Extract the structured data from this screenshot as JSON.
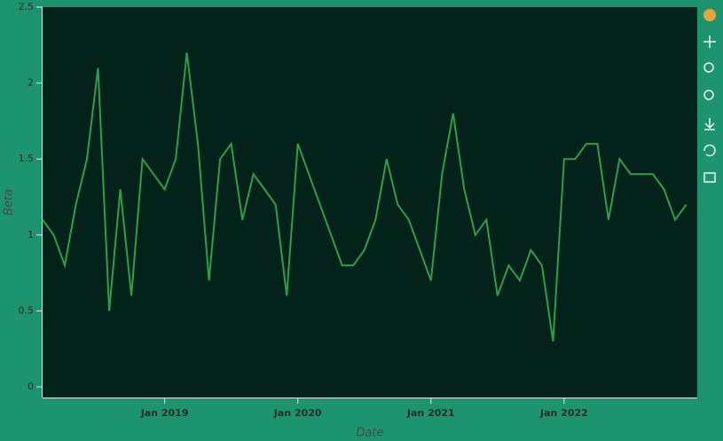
{
  "chart_data": {
    "type": "line",
    "x_label": "Date",
    "y_label": "Beta",
    "x": [
      "2018-02",
      "2018-03",
      "2018-04",
      "2018-05",
      "2018-06",
      "2018-07",
      "2018-08",
      "2018-09",
      "2018-10",
      "2018-11",
      "2018-12",
      "2019-01",
      "2019-02",
      "2019-03",
      "2019-04",
      "2019-05",
      "2019-06",
      "2019-07",
      "2019-08",
      "2019-09",
      "2019-10",
      "2019-11",
      "2019-12",
      "2020-01",
      "2020-02",
      "2020-03",
      "2020-04",
      "2020-05",
      "2020-06",
      "2020-07",
      "2020-08",
      "2020-09",
      "2020-10",
      "2020-11",
      "2020-12",
      "2021-01",
      "2021-02",
      "2021-03",
      "2021-04",
      "2021-05",
      "2021-06",
      "2021-07",
      "2021-08",
      "2021-09",
      "2021-10",
      "2021-11",
      "2021-12",
      "2022-01",
      "2022-02",
      "2022-03",
      "2022-04",
      "2022-05",
      "2022-06",
      "2022-07",
      "2022-08",
      "2022-09",
      "2022-10",
      "2022-11",
      "2022-12"
    ],
    "series": [
      {
        "name": "Beta",
        "color": "#2e9e48",
        "values": [
          1.1,
          1.0,
          0.8,
          1.2,
          1.5,
          2.1,
          0.5,
          1.3,
          0.6,
          1.5,
          1.4,
          1.3,
          1.5,
          2.2,
          1.6,
          0.7,
          1.5,
          1.6,
          1.1,
          1.4,
          1.3,
          1.2,
          0.6,
          1.6,
          1.4,
          1.2,
          1.0,
          0.8,
          0.8,
          0.9,
          1.1,
          1.5,
          1.2,
          1.1,
          0.9,
          0.7,
          1.4,
          1.8,
          1.3,
          1.0,
          1.1,
          0.6,
          0.8,
          0.7,
          0.9,
          0.8,
          0.3,
          1.5,
          1.5,
          1.6,
          1.6,
          1.1,
          1.5,
          1.4,
          1.4,
          1.4,
          1.3,
          1.1,
          1.2
        ]
      }
    ],
    "xlim": [
      "2018-02",
      "2023-01"
    ],
    "xticks": [
      {
        "value": "2019-01",
        "label": "Jan 2019"
      },
      {
        "value": "2020-01",
        "label": "Jan 2020"
      },
      {
        "value": "2021-01",
        "label": "Jan 2021"
      },
      {
        "value": "2022-01",
        "label": "Jan 2022"
      }
    ],
    "ylim": [
      -0.07,
      2.5
    ],
    "yticks": [
      0,
      0.5,
      1,
      1.5,
      2,
      2.5
    ],
    "grid": false
  }
}
